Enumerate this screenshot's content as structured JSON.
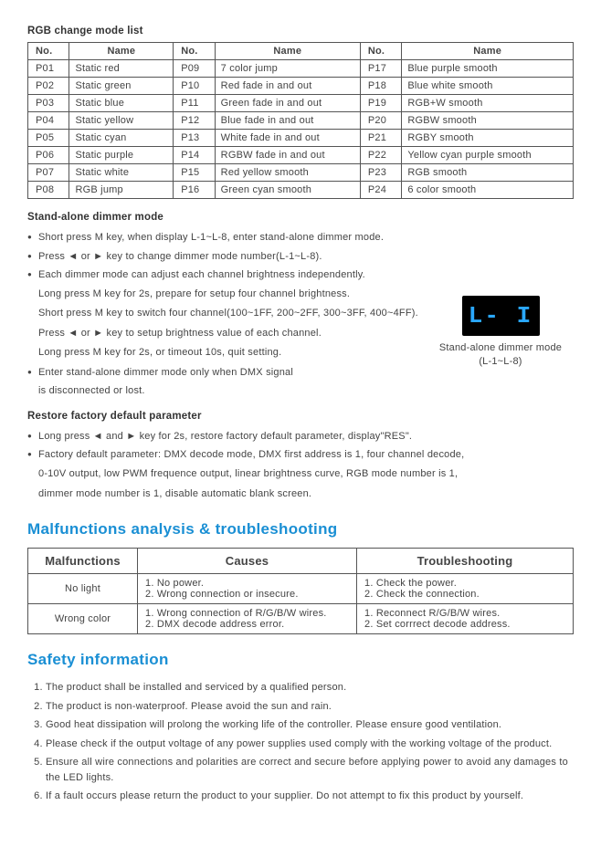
{
  "rgbTitle": "RGB change mode list",
  "modeHeaders": {
    "no": "No.",
    "name": "Name"
  },
  "modes": [
    {
      "g1no": "P01",
      "g1name": "Static red",
      "g2no": "P09",
      "g2name": "7 color jump",
      "g3no": "P17",
      "g3name": "Blue purple smooth"
    },
    {
      "g1no": "P02",
      "g1name": "Static green",
      "g2no": "P10",
      "g2name": "Red fade in and out",
      "g3no": "P18",
      "g3name": "Blue white smooth"
    },
    {
      "g1no": "P03",
      "g1name": "Static blue",
      "g2no": "P11",
      "g2name": "Green fade in and out",
      "g3no": "P19",
      "g3name": "RGB+W smooth"
    },
    {
      "g1no": "P04",
      "g1name": "Static yellow",
      "g2no": "P12",
      "g2name": "Blue fade in and out",
      "g3no": "P20",
      "g3name": "RGBW smooth"
    },
    {
      "g1no": "P05",
      "g1name": "Static cyan",
      "g2no": "P13",
      "g2name": "White fade in and out",
      "g3no": "P21",
      "g3name": "RGBY smooth"
    },
    {
      "g1no": "P06",
      "g1name": "Static purple",
      "g2no": "P14",
      "g2name": "RGBW fade in and out",
      "g3no": "P22",
      "g3name": "Yellow cyan purple smooth"
    },
    {
      "g1no": "P07",
      "g1name": "Static white",
      "g2no": "P15",
      "g2name": "Red yellow smooth",
      "g3no": "P23",
      "g3name": "RGB smooth"
    },
    {
      "g1no": "P08",
      "g1name": "RGB jump",
      "g2no": "P16",
      "g2name": "Green cyan smooth",
      "g3no": "P24",
      "g3name": "6 color smooth"
    }
  ],
  "standAloneTitle": "Stand-alone dimmer mode",
  "standAlone": [
    {
      "type": "bullet",
      "text": "Short press M key, when display L-1~L-8, enter stand-alone dimmer mode."
    },
    {
      "type": "bullet",
      "text": "Press ◄ or ► key to change dimmer mode number(L-1~L-8)."
    },
    {
      "type": "bullet",
      "text": "Each dimmer mode can adjust each channel brightness independently."
    },
    {
      "type": "indent",
      "text": "Long press M key for 2s, prepare for setup four channel brightness."
    },
    {
      "type": "indent",
      "text": "Short press M key to switch four channel(100~1FF, 200~2FF, 300~3FF, 400~4FF)."
    },
    {
      "type": "indent",
      "text": "Press ◄ or ► key to setup brightness value of each channel."
    },
    {
      "type": "indent",
      "text": "Long press M key for 2s, or timeout 10s, quit setting."
    },
    {
      "type": "bullet",
      "text": "Enter stand-alone dimmer mode only when DMX signal"
    },
    {
      "type": "indent",
      "text": "is disconnected or lost."
    }
  ],
  "display": {
    "value": "L- I",
    "caption1": "Stand-alone dimmer mode",
    "caption2": "(L-1~L-8)",
    "bgColor": "#000000",
    "textColor": "#2aa8ff"
  },
  "restoreTitle": "Restore factory default parameter",
  "restore": [
    {
      "type": "bullet",
      "text": "Long press ◄ and ► key for 2s, restore factory default parameter, display\"RES\"."
    },
    {
      "type": "bullet",
      "text": "Factory default parameter: DMX decode mode, DMX first address is 1, four channel decode,"
    },
    {
      "type": "indent",
      "text": "0-10V output, low PWM frequence output, linear brightness curve, RGB mode number is 1,"
    },
    {
      "type": "indent",
      "text": "dimmer mode number is 1, disable automatic blank screen."
    }
  ],
  "troubleTitle": "Malfunctions analysis & troubleshooting",
  "troubleHeaders": {
    "mal": "Malfunctions",
    "cause": "Causes",
    "ts": "Troubleshooting"
  },
  "troubleRows": [
    {
      "mal": "No light",
      "cause": "1. No power.\n2. Wrong connection or insecure.",
      "ts": "1. Check the power.\n2. Check the connection."
    },
    {
      "mal": "Wrong color",
      "cause": "1. Wrong connection of R/G/B/W wires.\n2. DMX decode address error.",
      "ts": "1.  Reconnect R/G/B/W wires.\n2. Set corrrect decode address."
    }
  ],
  "safetyTitle": "Safety information",
  "safety": [
    "The product shall be installed and serviced by a qualified person.",
    "The product is non-waterproof. Please avoid the sun and rain.",
    "Good heat dissipation will prolong the working life of the controller. Please ensure good ventilation.",
    "Please check if the output voltage of any power supplies used comply with the working voltage of the product.",
    "Ensure all wire connections and polarities are correct and secure before applying power to avoid any damages to the LED lights.",
    "If a fault occurs please return the product to your supplier. Do not attempt to fix this product by yourself."
  ],
  "colors": {
    "headingBlue": "#1a8fd4",
    "textColor": "#444",
    "borderColor": "#555"
  }
}
